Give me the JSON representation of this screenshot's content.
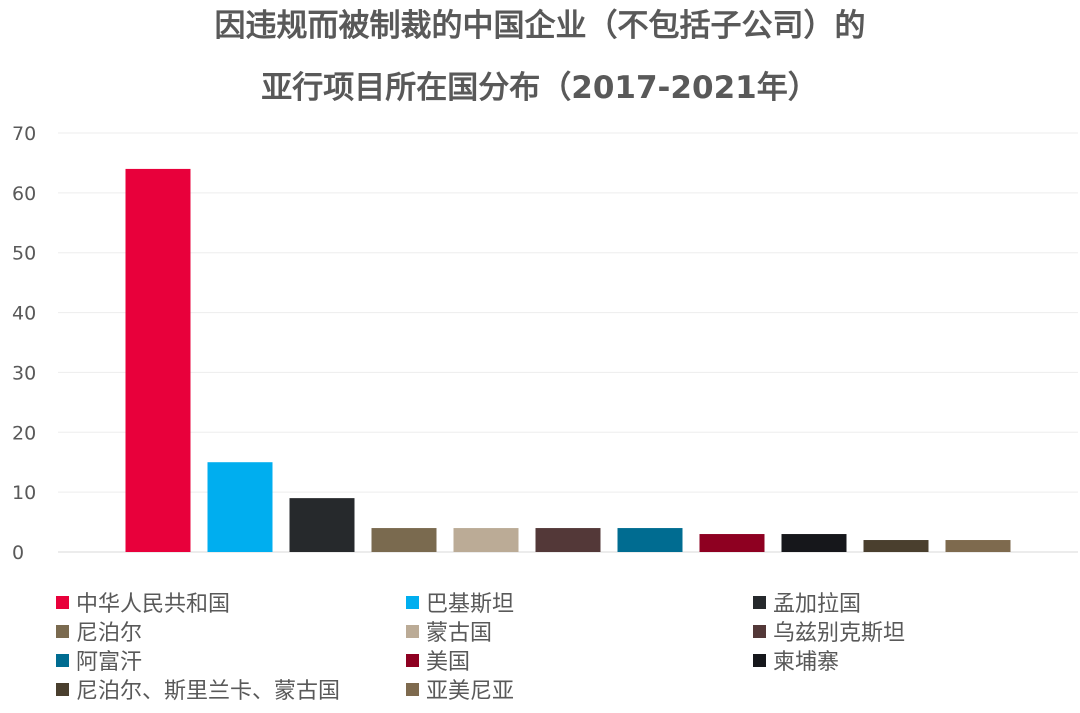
{
  "chart_data": {
    "type": "bar",
    "title_lines": [
      "因违规而被制裁的中国企业（不包括子公司）的",
      "亚行项目所在国分布（2017-2021年）"
    ],
    "categories": [
      "中华人民共和国",
      "巴基斯坦",
      "孟加拉国",
      "尼泊尔",
      "蒙古国",
      "乌兹别克斯坦",
      "阿富汗",
      "美国",
      "柬埔寨",
      "尼泊尔、斯里兰卡、蒙古国",
      "亚美尼亚"
    ],
    "values": [
      64,
      15,
      9,
      4,
      4,
      4,
      4,
      3,
      3,
      2,
      2
    ],
    "colors": [
      "#E8003B",
      "#00AEEF",
      "#26292C",
      "#7A6A4F",
      "#BBAB96",
      "#533838",
      "#006C91",
      "#8E0021",
      "#16171B",
      "#4A3F2E",
      "#7E6A4E"
    ],
    "ylim": [
      0,
      70
    ],
    "yticks": [
      0,
      10,
      20,
      30,
      40,
      50,
      60,
      70
    ],
    "grid": true,
    "legend_position": "bottom"
  }
}
